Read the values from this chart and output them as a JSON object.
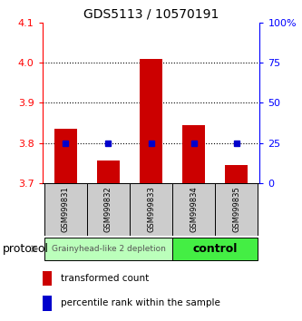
{
  "title": "GDS5113 / 10570191",
  "samples": [
    "GSM999831",
    "GSM999832",
    "GSM999833",
    "GSM999834",
    "GSM999835"
  ],
  "transformed_counts": [
    3.835,
    3.755,
    4.01,
    3.845,
    3.745
  ],
  "percentile_ranks": [
    25,
    25,
    25,
    25,
    25
  ],
  "bar_bottom": 3.7,
  "ylim_left": [
    3.7,
    4.1
  ],
  "ylim_right": [
    0,
    100
  ],
  "right_ticks": [
    0,
    25,
    50,
    75,
    100
  ],
  "right_tick_labels": [
    "0",
    "25",
    "50",
    "75",
    "100%"
  ],
  "left_ticks": [
    3.7,
    3.8,
    3.9,
    4.0,
    4.1
  ],
  "bar_color": "#cc0000",
  "dot_color": "#0000cc",
  "group1_label": "Grainyhead-like 2 depletion",
  "group2_label": "control",
  "group1_color": "#bbffbb",
  "group2_color": "#44ee44",
  "protocol_label": "protocol",
  "legend_bar_label": "transformed count",
  "legend_dot_label": "percentile rank within the sample",
  "dotted_lines": [
    3.8,
    3.9,
    4.0
  ],
  "bar_width": 0.55,
  "title_fontsize": 10,
  "tick_fontsize": 8,
  "sample_fontsize": 6,
  "group_fontsize1": 6.5,
  "group_fontsize2": 9,
  "legend_fontsize": 7.5
}
